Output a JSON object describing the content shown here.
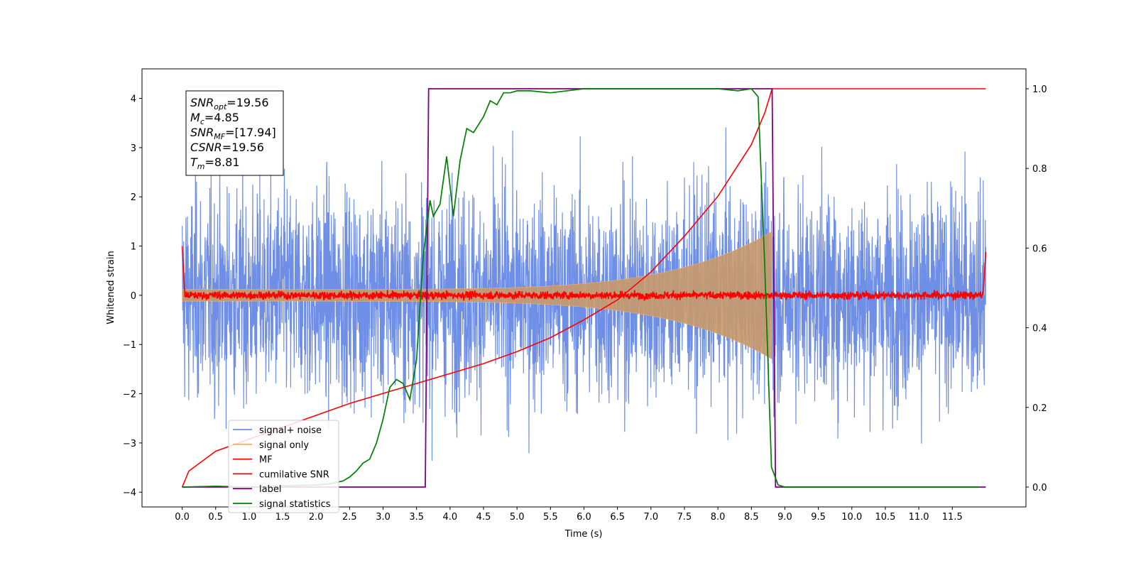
{
  "chart_data": {
    "type": "line",
    "xlabel": "Time (s)",
    "ylabel": "Whitened strain",
    "xlim": [
      -0.6,
      12.6
    ],
    "ylim": [
      -4.3,
      4.6
    ],
    "y2lim": [
      -0.05,
      1.05
    ],
    "x_ticks": [
      "0.0",
      "0.5",
      "1.0",
      "1.5",
      "2.0",
      "2.5",
      "3.0",
      "3.5",
      "4.0",
      "4.5",
      "5.0",
      "5.5",
      "6.0",
      "6.5",
      "7.0",
      "7.5",
      "8.0",
      "8.5",
      "9.0",
      "9.5",
      "10.0",
      "10.5",
      "11.0",
      "11.5"
    ],
    "y_ticks": [
      "−4",
      "−3",
      "−2",
      "−1",
      "0",
      "1",
      "2",
      "3",
      "4"
    ],
    "y2_ticks": [
      "0.0",
      "0.2",
      "0.4",
      "0.6",
      "0.8",
      "1.0"
    ],
    "stats": [
      {
        "sym": "SNR",
        "sub": "opt",
        "val": "=19.56"
      },
      {
        "sym": "M",
        "sub": "c",
        "val": "=4.85"
      },
      {
        "sym": "SNR",
        "sub": "MF",
        "val": "=[17.94]"
      },
      {
        "sym": "CSNR",
        "sub": "",
        "val": "=19.56"
      },
      {
        "sym": "T",
        "sub": "m",
        "val": "=8.81"
      }
    ],
    "series": [
      {
        "name": "signal+ noise",
        "color": "#6f8fe6",
        "axis": "left",
        "kind": "noise",
        "x_range": [
          0,
          12
        ],
        "envelope": [
          -3.5,
          3.5
        ]
      },
      {
        "name": "signal only",
        "color": "#f5b060",
        "axis": "left",
        "kind": "chirp",
        "x_range": [
          0,
          8.81
        ],
        "amplitude_start": 0.12,
        "amplitude_end": 1.3
      },
      {
        "name": "MF",
        "color": "#ff0000",
        "axis": "left",
        "kind": "noise",
        "x_range": [
          0,
          12
        ],
        "envelope": [
          -0.15,
          0.15
        ]
      },
      {
        "name": "cumilative SNR",
        "color": "#ff0000",
        "axis": "right",
        "x": [
          0,
          0.1,
          0.5,
          1.0,
          1.5,
          2.0,
          2.5,
          3.0,
          3.5,
          4.0,
          4.5,
          5.0,
          5.5,
          6.0,
          6.5,
          7.0,
          7.5,
          8.0,
          8.5,
          8.7,
          8.81,
          9.0,
          10.0,
          11.0,
          12.0
        ],
        "y": [
          0.0,
          0.04,
          0.09,
          0.12,
          0.15,
          0.18,
          0.21,
          0.235,
          0.26,
          0.285,
          0.31,
          0.34,
          0.375,
          0.42,
          0.47,
          0.54,
          0.63,
          0.73,
          0.86,
          0.94,
          1.0,
          1.0,
          1.0,
          1.0,
          1.0
        ]
      },
      {
        "name": "label",
        "color": "#800080",
        "axis": "right",
        "x": [
          0,
          3.63,
          3.68,
          8.81,
          8.86,
          12.0
        ],
        "y": [
          0.0,
          0.0,
          1.0,
          1.0,
          0.0,
          0.0
        ]
      },
      {
        "name": "signal statistics",
        "color": "#008000",
        "axis": "right",
        "x": [
          0.0,
          0.5,
          1.0,
          1.5,
          2.0,
          2.2,
          2.4,
          2.5,
          2.6,
          2.7,
          2.8,
          2.9,
          3.0,
          3.1,
          3.2,
          3.3,
          3.4,
          3.5,
          3.6,
          3.7,
          3.75,
          3.85,
          3.95,
          4.05,
          4.15,
          4.25,
          4.35,
          4.5,
          4.6,
          4.7,
          4.8,
          4.9,
          5.0,
          5.2,
          5.5,
          6.0,
          6.5,
          7.0,
          7.5,
          8.0,
          8.3,
          8.5,
          8.6,
          8.7,
          8.8,
          8.9,
          9.0,
          10.0,
          11.0,
          11.9
        ],
        "y": [
          0.0,
          0.002,
          0.0,
          0.003,
          0.005,
          0.008,
          0.015,
          0.025,
          0.04,
          0.06,
          0.07,
          0.11,
          0.17,
          0.25,
          0.27,
          0.26,
          0.22,
          0.32,
          0.58,
          0.72,
          0.68,
          0.71,
          0.83,
          0.68,
          0.82,
          0.9,
          0.89,
          0.93,
          0.97,
          0.96,
          0.99,
          0.99,
          0.995,
          0.995,
          0.99,
          1.0,
          1.0,
          1.0,
          1.0,
          1.0,
          0.995,
          1.0,
          0.98,
          0.55,
          0.05,
          0.005,
          0.0,
          0.0,
          0.0,
          0.0
        ]
      }
    ],
    "legend_position": "lower-left",
    "grid": false
  }
}
